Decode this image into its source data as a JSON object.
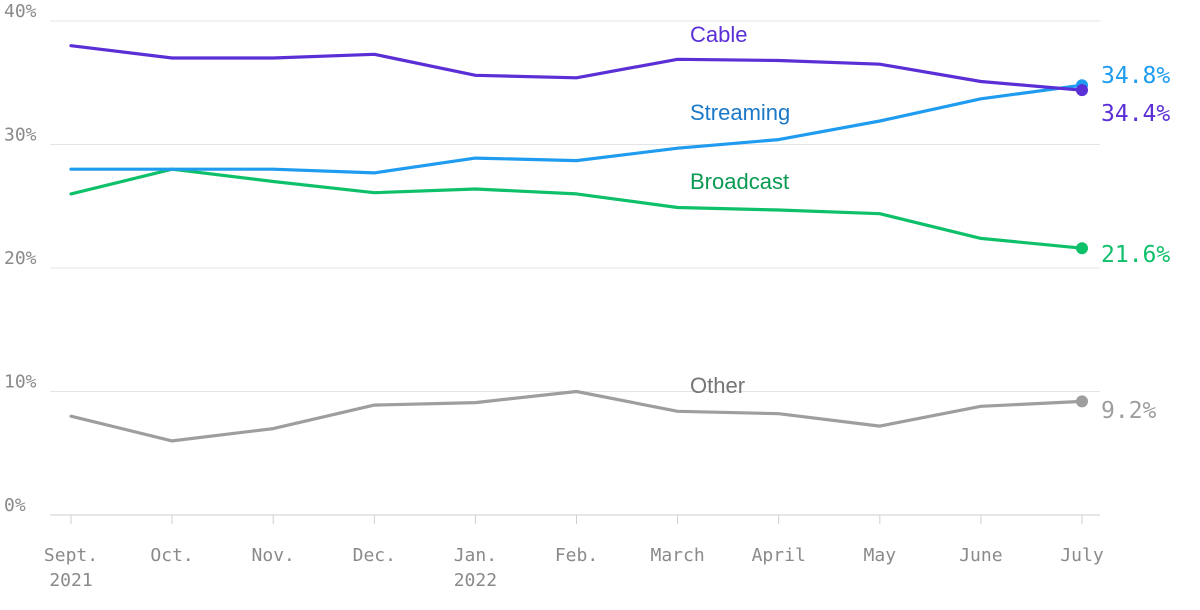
{
  "chart_data": {
    "type": "line",
    "x": [
      "Sept. 2021",
      "Oct.",
      "Nov.",
      "Dec.",
      "Jan. 2022",
      "Feb.",
      "March",
      "April",
      "May",
      "June",
      "July"
    ],
    "x_tick_labels": [
      [
        "Sept.",
        "2021"
      ],
      [
        "Oct."
      ],
      [
        "Nov."
      ],
      [
        "Dec."
      ],
      [
        "Jan.",
        "2022"
      ],
      [
        "Feb."
      ],
      [
        "March"
      ],
      [
        "April"
      ],
      [
        "May"
      ],
      [
        "June"
      ],
      [
        "July"
      ]
    ],
    "y_ticks": [
      0,
      10,
      20,
      30,
      40
    ],
    "y_tick_labels": [
      "0%",
      "10%",
      "20%",
      "30%",
      "40%"
    ],
    "ylim": [
      0,
      40
    ],
    "grid": true,
    "series": [
      {
        "name": "Cable",
        "color": "#5b2fd6",
        "values": [
          38.0,
          37.0,
          37.0,
          37.3,
          35.6,
          35.4,
          36.9,
          36.8,
          36.5,
          35.1,
          34.4
        ],
        "end_label": "34.4%"
      },
      {
        "name": "Streaming",
        "color": "#1f9cf0",
        "values": [
          28.0,
          28.0,
          28.0,
          27.7,
          28.9,
          28.7,
          29.7,
          30.4,
          31.9,
          33.7,
          34.8
        ],
        "end_label": "34.8%"
      },
      {
        "name": "Broadcast",
        "color": "#0fc06a",
        "values": [
          26.0,
          28.0,
          27.0,
          26.1,
          26.4,
          26.0,
          24.9,
          24.7,
          24.4,
          22.4,
          21.6
        ],
        "end_label": "21.6%"
      },
      {
        "name": "Other",
        "color": "#9e9e9e",
        "values": [
          8.0,
          6.0,
          7.0,
          8.9,
          9.1,
          10.0,
          8.4,
          8.2,
          7.2,
          8.8,
          9.2
        ],
        "end_label": "9.2%"
      }
    ]
  }
}
